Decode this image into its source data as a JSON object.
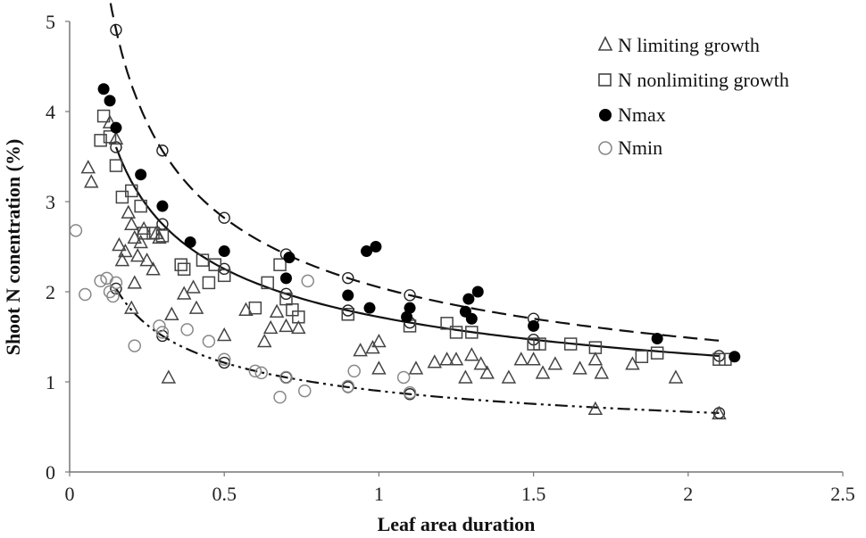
{
  "chart_data": {
    "type": "scatter",
    "xlabel": "Leaf area duration",
    "ylabel": "Shoot N conentration (%)",
    "xlim": [
      0,
      2.5
    ],
    "ylim": [
      0,
      5
    ],
    "xticks": [
      "0",
      "0.5",
      "1",
      "1.5",
      "2",
      "2.5"
    ],
    "yticks": [
      "0",
      "1",
      "2",
      "3",
      "4",
      "5"
    ],
    "grid": false,
    "legend_position": "top-right",
    "series": [
      {
        "name": "N limiting growth",
        "marker": "triangle",
        "color": "#444444",
        "points": [
          [
            0.06,
            3.38
          ],
          [
            0.07,
            3.22
          ],
          [
            0.13,
            3.88
          ],
          [
            0.15,
            3.7
          ],
          [
            0.16,
            2.52
          ],
          [
            0.17,
            2.35
          ],
          [
            0.18,
            2.45
          ],
          [
            0.19,
            2.88
          ],
          [
            0.2,
            2.75
          ],
          [
            0.21,
            2.6
          ],
          [
            0.22,
            2.4
          ],
          [
            0.23,
            2.55
          ],
          [
            0.24,
            2.7
          ],
          [
            0.25,
            2.35
          ],
          [
            0.27,
            2.25
          ],
          [
            0.28,
            2.65
          ],
          [
            0.29,
            2.6
          ],
          [
            0.21,
            2.1
          ],
          [
            0.2,
            1.82
          ],
          [
            0.32,
            1.05
          ],
          [
            0.33,
            1.75
          ],
          [
            0.37,
            1.98
          ],
          [
            0.4,
            2.05
          ],
          [
            0.41,
            1.82
          ],
          [
            0.5,
            1.52
          ],
          [
            0.57,
            1.8
          ],
          [
            0.63,
            1.45
          ],
          [
            0.65,
            1.6
          ],
          [
            0.67,
            1.78
          ],
          [
            0.7,
            1.62
          ],
          [
            0.74,
            1.6
          ],
          [
            0.94,
            1.35
          ],
          [
            0.98,
            1.38
          ],
          [
            1.0,
            1.45
          ],
          [
            1.0,
            1.15
          ],
          [
            1.12,
            1.15
          ],
          [
            1.18,
            1.22
          ],
          [
            1.22,
            1.25
          ],
          [
            1.25,
            1.25
          ],
          [
            1.28,
            1.05
          ],
          [
            1.3,
            1.3
          ],
          [
            1.33,
            1.2
          ],
          [
            1.35,
            1.1
          ],
          [
            1.42,
            1.05
          ],
          [
            1.46,
            1.25
          ],
          [
            1.5,
            1.25
          ],
          [
            1.53,
            1.1
          ],
          [
            1.57,
            1.2
          ],
          [
            1.65,
            1.15
          ],
          [
            1.7,
            1.25
          ],
          [
            1.72,
            1.1
          ],
          [
            1.82,
            1.2
          ],
          [
            1.96,
            1.05
          ],
          [
            1.7,
            0.7
          ],
          [
            2.1,
            0.65
          ]
        ]
      },
      {
        "name": "N nonlimiting growth",
        "marker": "square",
        "color": "#444444",
        "points": [
          [
            0.1,
            3.68
          ],
          [
            0.11,
            3.95
          ],
          [
            0.13,
            3.72
          ],
          [
            0.15,
            3.4
          ],
          [
            0.17,
            3.05
          ],
          [
            0.2,
            3.12
          ],
          [
            0.23,
            2.95
          ],
          [
            0.24,
            2.65
          ],
          [
            0.27,
            2.65
          ],
          [
            0.3,
            2.62
          ],
          [
            0.36,
            2.3
          ],
          [
            0.37,
            2.25
          ],
          [
            0.43,
            2.35
          ],
          [
            0.45,
            2.1
          ],
          [
            0.47,
            2.3
          ],
          [
            0.5,
            2.18
          ],
          [
            0.6,
            1.82
          ],
          [
            0.64,
            2.1
          ],
          [
            0.68,
            2.3
          ],
          [
            0.7,
            1.92
          ],
          [
            0.72,
            1.8
          ],
          [
            0.74,
            1.72
          ],
          [
            0.9,
            1.75
          ],
          [
            1.1,
            1.62
          ],
          [
            1.22,
            1.65
          ],
          [
            1.25,
            1.55
          ],
          [
            1.3,
            1.55
          ],
          [
            1.5,
            1.42
          ],
          [
            1.52,
            1.42
          ],
          [
            1.62,
            1.42
          ],
          [
            1.7,
            1.38
          ],
          [
            1.85,
            1.28
          ],
          [
            1.9,
            1.32
          ],
          [
            2.1,
            1.25
          ],
          [
            2.12,
            1.25
          ]
        ]
      },
      {
        "name": "Nmax",
        "marker": "filled-circle",
        "color": "#000000",
        "points": [
          [
            0.11,
            4.25
          ],
          [
            0.13,
            4.12
          ],
          [
            0.15,
            3.82
          ],
          [
            0.23,
            3.3
          ],
          [
            0.3,
            2.95
          ],
          [
            0.39,
            2.55
          ],
          [
            0.5,
            2.45
          ],
          [
            0.7,
            2.15
          ],
          [
            0.71,
            2.38
          ],
          [
            0.9,
            1.96
          ],
          [
            0.96,
            2.45
          ],
          [
            0.99,
            2.5
          ],
          [
            0.97,
            1.82
          ],
          [
            1.09,
            1.72
          ],
          [
            1.1,
            1.82
          ],
          [
            1.28,
            1.78
          ],
          [
            1.29,
            1.92
          ],
          [
            1.3,
            1.7
          ],
          [
            1.32,
            2.0
          ],
          [
            1.5,
            1.62
          ],
          [
            1.9,
            1.48
          ],
          [
            2.15,
            1.28
          ]
        ]
      },
      {
        "name": "Nmin",
        "marker": "open-circle",
        "color": "#888888",
        "points": [
          [
            0.02,
            2.68
          ],
          [
            0.05,
            1.97
          ],
          [
            0.1,
            2.12
          ],
          [
            0.12,
            2.15
          ],
          [
            0.13,
            2.0
          ],
          [
            0.15,
            2.1
          ],
          [
            0.14,
            1.95
          ],
          [
            0.21,
            1.4
          ],
          [
            0.29,
            1.62
          ],
          [
            0.3,
            1.55
          ],
          [
            0.38,
            1.58
          ],
          [
            0.45,
            1.45
          ],
          [
            0.5,
            1.25
          ],
          [
            0.6,
            1.12
          ],
          [
            0.62,
            1.1
          ],
          [
            0.68,
            0.83
          ],
          [
            0.7,
            1.05
          ],
          [
            0.76,
            0.9
          ],
          [
            0.77,
            2.12
          ],
          [
            0.9,
            0.95
          ],
          [
            0.92,
            1.12
          ],
          [
            1.08,
            1.05
          ],
          [
            1.1,
            0.88
          ]
        ]
      }
    ],
    "trendlines": [
      {
        "series": "Nmax",
        "style": "dashed",
        "a": 2.05,
        "b": 0.46,
        "x_range": [
          0.12,
          2.1
        ]
      },
      {
        "series": "N nonlimiting growth",
        "style": "solid",
        "a": 1.72,
        "b": 0.39,
        "x_range": [
          0.15,
          2.1
        ]
      },
      {
        "series": "Nmin",
        "style": "dash-dot-dot",
        "a": 0.9,
        "b": 0.43,
        "x_range": [
          0.15,
          2.1
        ]
      }
    ],
    "trendline_markers": {
      "Nmax": [
        0.15,
        0.3,
        0.5,
        0.7,
        0.9,
        1.1,
        1.5
      ],
      "N nonlimiting growth": [
        0.15,
        0.3,
        0.5,
        0.7,
        0.9,
        1.1,
        1.5,
        2.1
      ],
      "Nmin": [
        0.15,
        0.3,
        0.5,
        0.7,
        0.9,
        1.1,
        2.1
      ]
    }
  }
}
